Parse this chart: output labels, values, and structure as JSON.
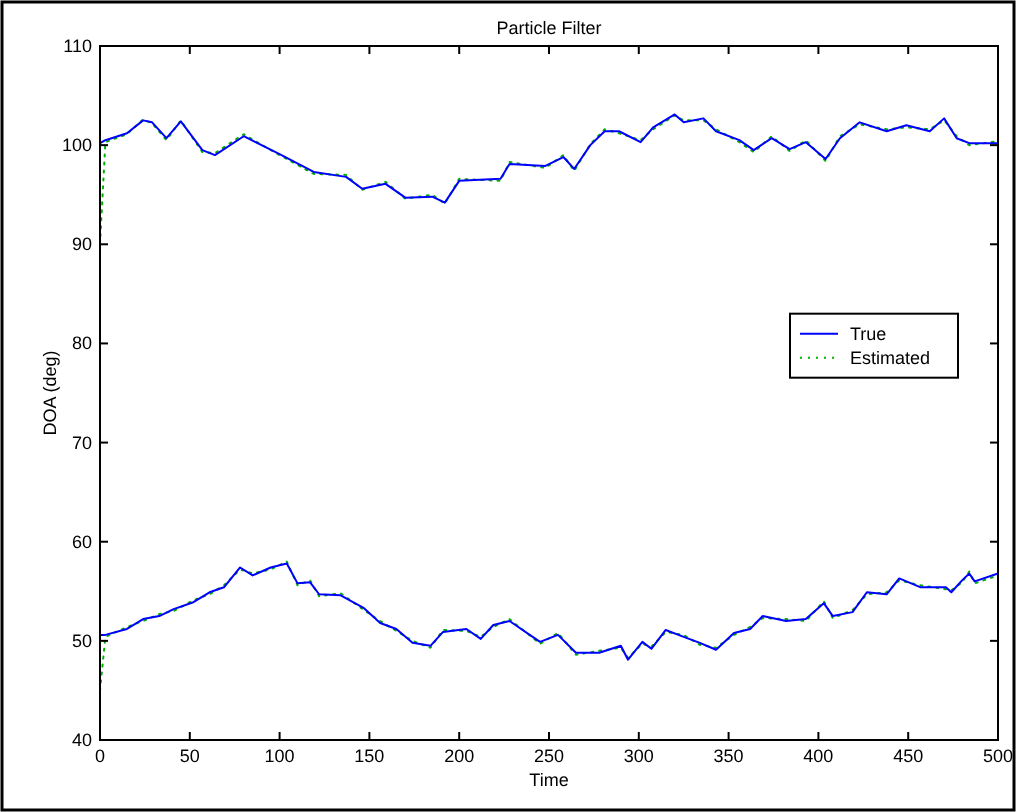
{
  "chart_data": {
    "type": "line",
    "title": "Particle Filter",
    "xlabel": "Time",
    "ylabel": "DOA (deg)",
    "xlim": [
      0,
      500
    ],
    "ylim": [
      40,
      110
    ],
    "xticks": [
      0,
      50,
      100,
      150,
      200,
      250,
      300,
      350,
      400,
      450,
      500
    ],
    "yticks": [
      40,
      50,
      60,
      70,
      80,
      90,
      100,
      110
    ],
    "grid": false,
    "legend": "right",
    "marker": "none",
    "series": [
      {
        "name": "True",
        "color": "#0000ff",
        "line_style": "solid",
        "x": [
          0,
          3,
          15,
          24,
          29,
          37,
          45,
          57,
          64,
          80,
          100,
          119,
          137,
          146,
          159,
          170,
          185,
          192,
          200,
          223,
          228,
          248,
          258,
          264,
          273,
          281,
          289,
          301,
          308,
          320,
          325,
          336,
          343,
          356,
          364,
          374,
          384,
          393,
          404,
          412,
          423,
          438,
          449,
          462,
          470,
          477,
          484,
          500
        ],
        "values": [
          100.2,
          100.5,
          101.2,
          102.5,
          102.3,
          100.7,
          102.4,
          99.5,
          99,
          100.9,
          99.1,
          97.3,
          96.8,
          95.6,
          96.1,
          94.7,
          94.8,
          94.2,
          96.4,
          96.6,
          98.1,
          97.9,
          98.8,
          97.6,
          100,
          101.4,
          101.4,
          100.3,
          101.8,
          103.1,
          102.3,
          102.7,
          101.4,
          100.5,
          99.5,
          100.7,
          99.6,
          100.3,
          98.6,
          100.7,
          102.3,
          101.4,
          102,
          101.4,
          102.7,
          100.7,
          100.2,
          100.2
        ]
      },
      {
        "color": "#0000ff",
        "line_style": "solid",
        "x": [
          0,
          3,
          15,
          24,
          33,
          41,
          52,
          61,
          69,
          78,
          85,
          95,
          104,
          110,
          117,
          122,
          134,
          147,
          156,
          165,
          174,
          184,
          191,
          204,
          212,
          219,
          228,
          245,
          255,
          265,
          278,
          290,
          294,
          302,
          307,
          315,
          325,
          334,
          343,
          353,
          362,
          369,
          382,
          393,
          403,
          408,
          419,
          427,
          438,
          445,
          457,
          471,
          474,
          480,
          484,
          487,
          500
        ],
        "values": [
          50.6,
          50.6,
          51.2,
          52.2,
          52.5,
          53.2,
          53.9,
          54.9,
          55.4,
          57.4,
          56.6,
          57.4,
          57.8,
          55.8,
          55.9,
          54.7,
          54.6,
          53.3,
          51.8,
          51.2,
          49.8,
          49.5,
          50.9,
          51.2,
          50.2,
          51.6,
          52,
          49.9,
          50.6,
          48.8,
          48.8,
          49.5,
          48.1,
          49.9,
          49.2,
          51.1,
          50.4,
          49.8,
          49.1,
          50.8,
          51.2,
          52.5,
          52,
          52.2,
          53.8,
          52.5,
          52.9,
          54.9,
          54.7,
          56.3,
          55.4,
          55.4,
          54.9,
          56.1,
          56.8,
          56,
          56.8
        ]
      },
      {
        "name": "Estimated",
        "color": "#00b000",
        "line_style": "dotted",
        "x": [
          0,
          3,
          15,
          24,
          29,
          37,
          45,
          57,
          64,
          80,
          100,
          119,
          137,
          146,
          159,
          170,
          185,
          192,
          200,
          223,
          228,
          248,
          258,
          264,
          273,
          281,
          289,
          301,
          308,
          320,
          325,
          336,
          343,
          356,
          364,
          374,
          384,
          393,
          404,
          412,
          423,
          438,
          449,
          462,
          470,
          477,
          484,
          500
        ],
        "values": [
          90,
          100.3,
          101.1,
          102.6,
          102.2,
          100.5,
          102.5,
          99.3,
          99.2,
          101.1,
          99,
          97.1,
          97,
          95.5,
          96.3,
          94.6,
          95,
          94.1,
          96.6,
          96.4,
          98.3,
          97.7,
          99,
          97.4,
          100.1,
          101.6,
          101.2,
          100.5,
          101.6,
          103,
          102.5,
          102.5,
          101.6,
          100.3,
          99.3,
          100.9,
          99.4,
          100.5,
          98.4,
          100.9,
          102.1,
          101.6,
          101.8,
          101.6,
          102.5,
          100.9,
          100,
          100.4
        ]
      },
      {
        "color": "#00b000",
        "line_style": "dotted",
        "x": [
          0,
          3,
          15,
          24,
          33,
          41,
          52,
          61,
          69,
          78,
          85,
          95,
          104,
          110,
          117,
          122,
          134,
          147,
          156,
          165,
          174,
          184,
          191,
          204,
          212,
          219,
          228,
          245,
          255,
          265,
          278,
          290,
          294,
          302,
          307,
          315,
          325,
          334,
          343,
          353,
          362,
          369,
          382,
          393,
          403,
          408,
          419,
          427,
          438,
          445,
          457,
          471,
          474,
          480,
          484,
          487,
          500
        ],
        "values": [
          45,
          50.4,
          51.4,
          52,
          52.7,
          53,
          54.1,
          54.7,
          55.6,
          57.2,
          56.8,
          57.2,
          58,
          55.6,
          56.1,
          54.5,
          54.8,
          53.1,
          52,
          51,
          50,
          49.3,
          51.1,
          51,
          50.4,
          51.4,
          52.2,
          49.7,
          50.8,
          48.6,
          49,
          49.3,
          48.3,
          49.7,
          49.4,
          50.9,
          50.6,
          49.6,
          49.3,
          50.6,
          51.4,
          52.3,
          52.2,
          52,
          54,
          52.3,
          53.1,
          54.7,
          54.9,
          56.1,
          55.6,
          55.2,
          55.1,
          55.9,
          57,
          55.8,
          56.6
        ]
      }
    ]
  }
}
